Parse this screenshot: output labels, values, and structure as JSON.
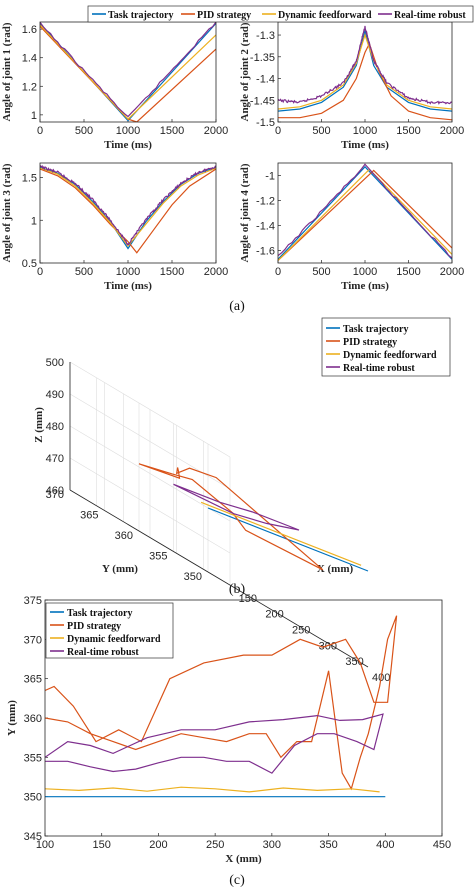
{
  "colors": {
    "task": "#0072BD",
    "pid": "#D95319",
    "ff": "#EDB120",
    "robust": "#7E2F8E"
  },
  "legend": {
    "task": "Task trajectory",
    "pid": "PID strategy",
    "ff": "Dynamic feedforward",
    "robust": "Real-time robust"
  },
  "captions": {
    "a": "(a)",
    "b": "(b)",
    "c": "(c)"
  },
  "chart_data": [
    {
      "id": "j1",
      "type": "line",
      "xlabel": "Time (ms)",
      "ylabel": "Angle of joint 1 (rad)",
      "xlim": [
        0,
        2000
      ],
      "ylim": [
        0.95,
        1.65
      ],
      "xticks": [
        0,
        500,
        1000,
        1500,
        2000
      ],
      "yticks": [
        1,
        1.2,
        1.4,
        1.6
      ],
      "series": [
        {
          "name": "Task trajectory",
          "key": "task",
          "x": [
            0,
            1000,
            2000
          ],
          "y": [
            1.64,
            0.96,
            1.64
          ]
        },
        {
          "name": "PID strategy",
          "key": "pid",
          "x": [
            0,
            1000,
            1100,
            2000
          ],
          "y": [
            1.62,
            0.97,
            0.95,
            1.46
          ]
        },
        {
          "name": "Dynamic feedforward",
          "key": "ff",
          "x": [
            0,
            1000,
            2000
          ],
          "y": [
            1.63,
            0.97,
            1.56
          ]
        },
        {
          "name": "Real-time robust",
          "key": "robust",
          "x": [
            0,
            1000,
            2000
          ],
          "y": [
            1.64,
            0.98,
            1.65
          ]
        }
      ]
    },
    {
      "id": "j2",
      "type": "line",
      "xlabel": "Time (ms)",
      "ylabel": "Angle of joint 2 (rad)",
      "xlim": [
        0,
        2000
      ],
      "ylim": [
        -1.5,
        -1.27
      ],
      "xticks": [
        0,
        500,
        1000,
        1500,
        2000
      ],
      "yticks": [
        -1.3,
        -1.35,
        -1.4,
        -1.45,
        -1.5
      ],
      "series": [
        {
          "name": "Task trajectory",
          "key": "task",
          "x": [
            0,
            250,
            500,
            750,
            900,
            1000,
            1100,
            1250,
            1500,
            1750,
            2000
          ],
          "y": [
            -1.475,
            -1.47,
            -1.455,
            -1.42,
            -1.37,
            -1.29,
            -1.37,
            -1.42,
            -1.455,
            -1.47,
            -1.475
          ]
        },
        {
          "name": "PID strategy",
          "key": "pid",
          "x": [
            0,
            250,
            500,
            750,
            900,
            1000,
            1050,
            1150,
            1300,
            1500,
            1750,
            2000
          ],
          "y": [
            -1.49,
            -1.49,
            -1.48,
            -1.45,
            -1.4,
            -1.34,
            -1.32,
            -1.38,
            -1.44,
            -1.475,
            -1.49,
            -1.495
          ]
        },
        {
          "name": "Dynamic feedforward",
          "key": "ff",
          "x": [
            0,
            250,
            500,
            750,
            900,
            1000,
            1100,
            1250,
            1500,
            1750,
            2000
          ],
          "y": [
            -1.47,
            -1.465,
            -1.45,
            -1.415,
            -1.365,
            -1.3,
            -1.36,
            -1.415,
            -1.45,
            -1.465,
            -1.47
          ]
        },
        {
          "name": "Real-time robust",
          "key": "robust",
          "x": [
            0,
            250,
            500,
            750,
            900,
            1000,
            1100,
            1250,
            1500,
            1750,
            2000
          ],
          "y": [
            -1.45,
            -1.455,
            -1.44,
            -1.41,
            -1.36,
            -1.28,
            -1.36,
            -1.41,
            -1.445,
            -1.455,
            -1.455
          ]
        }
      ]
    },
    {
      "id": "j3",
      "type": "line",
      "xlabel": "Time (ms)",
      "ylabel": "Angle of joint 3 (rad)",
      "xlim": [
        0,
        2000
      ],
      "ylim": [
        0.5,
        1.67
      ],
      "xticks": [
        0,
        500,
        1000,
        1500,
        2000
      ],
      "yticks": [
        0.5,
        1,
        1.5
      ],
      "series": [
        {
          "name": "Task trajectory",
          "key": "task",
          "x": [
            0,
            200,
            400,
            600,
            800,
            1000,
            1200,
            1400,
            1600,
            1800,
            2000
          ],
          "y": [
            1.62,
            1.55,
            1.42,
            1.22,
            0.98,
            0.67,
            0.98,
            1.22,
            1.42,
            1.55,
            1.62
          ]
        },
        {
          "name": "PID strategy",
          "key": "pid",
          "x": [
            0,
            200,
            400,
            600,
            800,
            1000,
            1100,
            1300,
            1500,
            1700,
            2000
          ],
          "y": [
            1.6,
            1.52,
            1.38,
            1.18,
            0.95,
            0.75,
            0.62,
            0.9,
            1.18,
            1.4,
            1.6
          ]
        },
        {
          "name": "Dynamic feedforward",
          "key": "ff",
          "x": [
            0,
            200,
            400,
            600,
            800,
            1000,
            1200,
            1400,
            1600,
            1800,
            2000
          ],
          "y": [
            1.61,
            1.54,
            1.4,
            1.2,
            0.97,
            0.7,
            0.95,
            1.2,
            1.4,
            1.53,
            1.61
          ]
        },
        {
          "name": "Real-time robust",
          "key": "robust",
          "x": [
            0,
            200,
            400,
            600,
            800,
            1000,
            1200,
            1400,
            1600,
            1800,
            2000
          ],
          "y": [
            1.63,
            1.56,
            1.43,
            1.24,
            1.0,
            0.72,
            1.0,
            1.24,
            1.43,
            1.56,
            1.63
          ]
        }
      ]
    },
    {
      "id": "j4",
      "type": "line",
      "xlabel": "Time (ms)",
      "ylabel": "Angle of joint 4 (rad)",
      "xlim": [
        0,
        2000
      ],
      "ylim": [
        -1.7,
        -0.9
      ],
      "xticks": [
        0,
        500,
        1000,
        1500,
        2000
      ],
      "yticks": [
        -1,
        -1.2,
        -1.4,
        -1.6
      ],
      "series": [
        {
          "name": "Task trajectory",
          "key": "task",
          "x": [
            0,
            1000,
            2000
          ],
          "y": [
            -1.67,
            -0.93,
            -1.67
          ]
        },
        {
          "name": "PID strategy",
          "key": "pid",
          "x": [
            0,
            1100,
            2000
          ],
          "y": [
            -1.68,
            -0.96,
            -1.58
          ]
        },
        {
          "name": "Dynamic feedforward",
          "key": "ff",
          "x": [
            0,
            1050,
            2000
          ],
          "y": [
            -1.68,
            -0.95,
            -1.63
          ]
        },
        {
          "name": "Real-time robust",
          "key": "robust",
          "x": [
            0,
            1000,
            2000
          ],
          "y": [
            -1.65,
            -0.92,
            -1.66
          ]
        }
      ]
    },
    {
      "id": "3d",
      "type": "line",
      "xlabel": "X (mm)",
      "ylabel": "Y (mm)",
      "zlabel": "Z (mm)",
      "xlim": [
        100,
        400
      ],
      "ylim": [
        350,
        370
      ],
      "zlim": [
        460,
        500
      ],
      "xticks": [
        150,
        200,
        250,
        300,
        350,
        400
      ],
      "yticks": [
        350,
        355,
        360,
        365,
        370
      ],
      "zticks": [
        460,
        470,
        480,
        490,
        500
      ],
      "series": [
        {
          "name": "Task trajectory",
          "key": "task",
          "x": [
            100,
            400
          ],
          "y": [
            350,
            350
          ],
          "z": [
            480,
            490
          ]
        },
        {
          "name": "PID strategy",
          "key": "pid",
          "x": [
            100,
            150,
            200,
            250,
            300,
            350,
            400,
            380,
            300,
            250,
            200,
            150,
            100
          ],
          "y": [
            360,
            358,
            362,
            366,
            370,
            372,
            372,
            355,
            360,
            358,
            360,
            359,
            360
          ],
          "z": [
            481,
            484,
            486,
            487,
            485,
            489,
            491,
            482,
            480,
            483,
            486,
            484,
            481
          ]
        },
        {
          "name": "Dynamic feedforward",
          "key": "ff",
          "x": [
            100,
            400
          ],
          "y": [
            351,
            351
          ],
          "z": [
            480.5,
            490.5
          ]
        },
        {
          "name": "Real-time robust",
          "key": "robust",
          "x": [
            100,
            200,
            300,
            400,
            300,
            200,
            100
          ],
          "y": [
            355,
            356,
            359,
            360,
            357,
            354,
            355
          ],
          "z": [
            481,
            484,
            487,
            490,
            486,
            483,
            481
          ]
        }
      ]
    },
    {
      "id": "xy",
      "type": "line",
      "xlabel": "X (mm)",
      "ylabel": "Y (mm)",
      "xlim": [
        100,
        450
      ],
      "ylim": [
        345,
        375
      ],
      "xticks": [
        100,
        150,
        200,
        250,
        300,
        350,
        400,
        450
      ],
      "yticks": [
        345,
        350,
        355,
        360,
        365,
        370,
        375
      ],
      "series": [
        {
          "name": "Task trajectory",
          "key": "task",
          "x": [
            100,
            400
          ],
          "y": [
            350,
            350
          ]
        },
        {
          "name": "PID strategy",
          "key": "pid",
          "x": [
            100,
            108,
            125,
            145,
            165,
            185,
            210,
            240,
            275,
            300,
            325,
            345,
            365,
            378,
            390,
            402,
            410,
            402,
            395,
            385,
            378,
            370,
            362,
            350,
            335,
            322,
            308,
            295,
            280,
            260,
            240,
            220,
            200,
            180,
            160,
            140,
            120,
            100
          ],
          "y": [
            363.5,
            364,
            361.5,
            357,
            358.5,
            357,
            365,
            367,
            368,
            368,
            370,
            369,
            370,
            367,
            362,
            362,
            373,
            370,
            364,
            358,
            355,
            351,
            353,
            366,
            357,
            357,
            355,
            358,
            358,
            357,
            357.5,
            358,
            357,
            356,
            357,
            358,
            359.5,
            360
          ]
        },
        {
          "name": "Dynamic feedforward",
          "key": "ff",
          "x": [
            100,
            130,
            160,
            190,
            220,
            250,
            280,
            310,
            340,
            370,
            395
          ],
          "y": [
            351,
            350.8,
            351.1,
            350.7,
            351.2,
            351,
            350.6,
            351.1,
            350.8,
            351,
            350.6
          ]
        },
        {
          "name": "Real-time robust",
          "key": "robust",
          "x": [
            100,
            120,
            140,
            160,
            190,
            220,
            250,
            280,
            310,
            340,
            360,
            380,
            398,
            390,
            375,
            355,
            340,
            320,
            300,
            280,
            260,
            240,
            220,
            200,
            180,
            160,
            140,
            120,
            100
          ],
          "y": [
            355,
            357,
            356.5,
            355.5,
            357.5,
            358.5,
            358.5,
            359.5,
            359.8,
            360.3,
            359.7,
            359.8,
            360.5,
            356,
            357,
            358,
            358,
            356.5,
            353,
            354.5,
            354.5,
            355,
            355,
            354.3,
            353.5,
            353.2,
            353.8,
            354.5,
            354.5
          ]
        }
      ]
    }
  ]
}
